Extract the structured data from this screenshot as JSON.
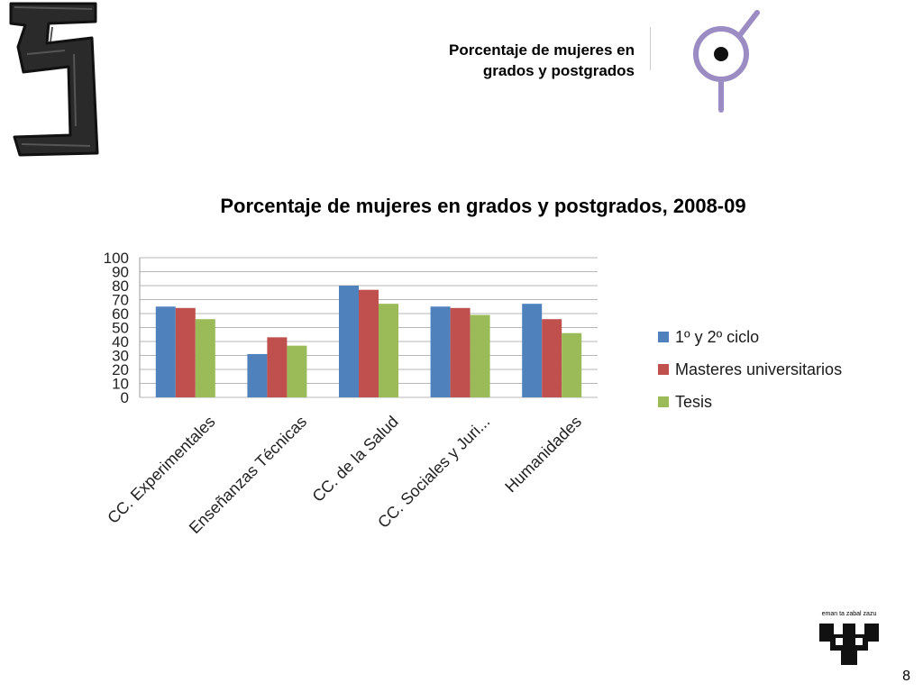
{
  "header": {
    "title_line1": "Porcentaje de mujeres en",
    "title_line2": "grados y postgrados"
  },
  "icons": {
    "corner_logo": "brush-stroke-logo-icon",
    "header_symbol": "gender-symbol-icon",
    "university_logo": "university-logo-icon"
  },
  "colors": {
    "series1": "#4F81BD",
    "series2": "#C0504D",
    "series3": "#9BBB59",
    "gridline": "#b7b7b7",
    "accent_purple": "#9b8cc4"
  },
  "chart_data": {
    "type": "bar",
    "title": "Porcentaje de mujeres en grados y postgrados, 2008-09",
    "categories": [
      "CC. Experimentales",
      "Enseñanzas Técnicas",
      "CC. de la Salud",
      "CC. Sociales y Juri...",
      "Humanidades"
    ],
    "series": [
      {
        "name": "1º y 2º ciclo",
        "values": [
          65,
          31,
          80,
          65,
          67
        ]
      },
      {
        "name": "Masteres universitarios",
        "values": [
          64,
          43,
          77,
          64,
          56
        ]
      },
      {
        "name": "Tesis",
        "values": [
          56,
          37,
          67,
          59,
          46
        ]
      }
    ],
    "ylim": [
      0,
      100
    ],
    "yticks": [
      0,
      10,
      20,
      30,
      40,
      50,
      60,
      70,
      80,
      90,
      100
    ],
    "grid": true,
    "legend_position": "right"
  },
  "footer": {
    "motto": "eman ta zabal zazu",
    "page_number": "8"
  }
}
